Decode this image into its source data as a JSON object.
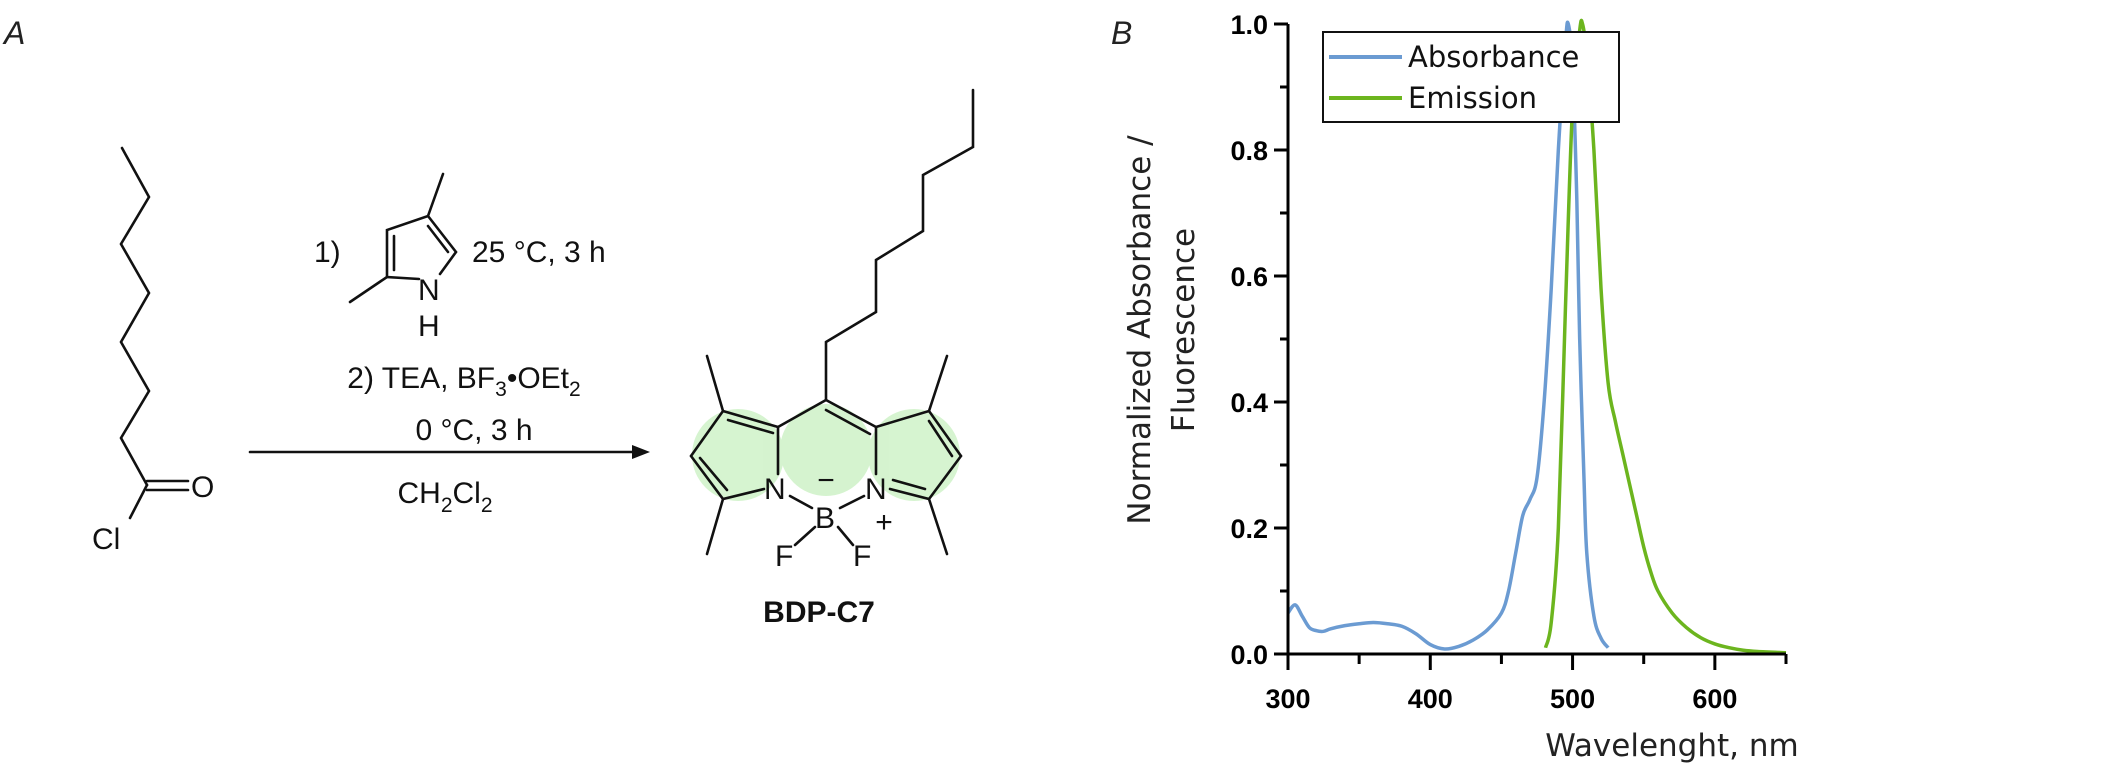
{
  "panel_a": {
    "letter": "A",
    "reactant_atoms": {
      "O": "O",
      "Cl": "Cl"
    },
    "reagent_pyrrole_atoms": {
      "N": "N",
      "H": "H"
    },
    "step1_label": "1)",
    "step1_conditions": "25 °C, 3 h",
    "step2": {
      "a": "2) TEA, BF",
      "b": "3",
      "c": "•OEt",
      "d": "2"
    },
    "step2_conditions": "0 °C, 3 h",
    "solvent": {
      "a": "CH",
      "b": "2",
      "c": "Cl",
      "d": "2"
    },
    "product_atoms": {
      "N1": "N",
      "N2": "N",
      "B": "B",
      "F1": "F",
      "F2": "F",
      "minus": "−",
      "plus": "+"
    },
    "product_name": "BDP-C7",
    "glow_color": "#c8f0c0"
  },
  "panel_b": {
    "letter": "B"
  },
  "chart_data": {
    "type": "line",
    "title": "",
    "xlabel": "Wavelenght, nm",
    "ylabel_line1": "Normalized Absorbance /",
    "ylabel_line2": "Fluorescence",
    "xlim": [
      300,
      650
    ],
    "ylim": [
      0,
      1.0
    ],
    "x_ticks": [
      300,
      400,
      500,
      600
    ],
    "x_tick_labels": [
      "300",
      "400",
      "500",
      "600"
    ],
    "x_minor_ticks": [
      350,
      450,
      550,
      650
    ],
    "y_ticks": [
      0,
      0.2,
      0.4,
      0.6,
      0.8,
      1.0
    ],
    "y_tick_labels": [
      "0.0",
      "0.2",
      "0.4",
      "0.6",
      "0.8",
      "1.0"
    ],
    "y_minor_ticks": [
      0.1,
      0.3,
      0.5,
      0.7,
      0.9
    ],
    "grid": false,
    "legend_position": "top-left",
    "series": [
      {
        "name": "Absorbance",
        "color": "#6b9bd2",
        "x": [
          300,
          305,
          310,
          315,
          320,
          325,
          330,
          340,
          350,
          360,
          370,
          380,
          390,
          400,
          410,
          420,
          430,
          440,
          450,
          455,
          460,
          465,
          470,
          475,
          480,
          485,
          490,
          495,
          497,
          500,
          503,
          505,
          508,
          510,
          515,
          520,
          525
        ],
        "y": [
          0.065,
          0.078,
          0.06,
          0.042,
          0.037,
          0.036,
          0.04,
          0.045,
          0.048,
          0.05,
          0.048,
          0.044,
          0.032,
          0.015,
          0.008,
          0.012,
          0.022,
          0.038,
          0.065,
          0.1,
          0.16,
          0.22,
          0.245,
          0.28,
          0.4,
          0.58,
          0.8,
          0.97,
          1.0,
          0.93,
          0.72,
          0.5,
          0.28,
          0.16,
          0.06,
          0.025,
          0.01
        ]
      },
      {
        "name": "Emission",
        "color": "#6cb51e",
        "x": [
          481,
          485,
          490,
          495,
          500,
          505,
          507,
          510,
          515,
          520,
          525,
          530,
          535,
          540,
          545,
          550,
          555,
          560,
          570,
          580,
          590,
          600,
          610,
          620,
          630,
          650
        ],
        "y": [
          0.01,
          0.05,
          0.2,
          0.55,
          0.87,
          0.99,
          1.0,
          0.95,
          0.8,
          0.58,
          0.43,
          0.37,
          0.32,
          0.27,
          0.22,
          0.17,
          0.13,
          0.1,
          0.065,
          0.042,
          0.026,
          0.016,
          0.01,
          0.006,
          0.004,
          0.002
        ]
      }
    ]
  }
}
